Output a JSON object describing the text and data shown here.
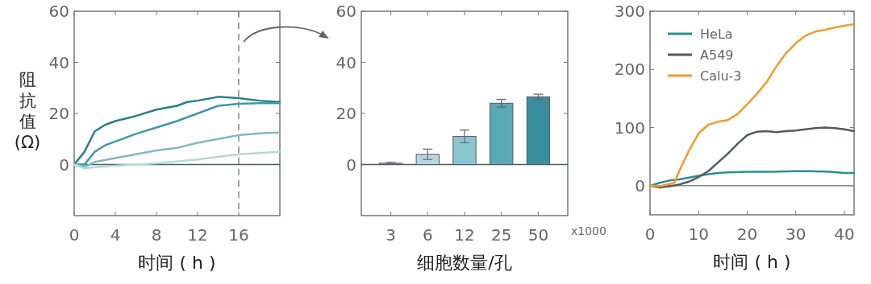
{
  "chart_data": [
    {
      "type": "line",
      "ylabel": "阻抗值 (Ω)",
      "xlabel": "时间 ( h )",
      "xlim": [
        0,
        20
      ],
      "xticks": [
        0,
        4,
        8,
        12,
        16
      ],
      "ylim": [
        -20,
        60
      ],
      "yticks": [
        0,
        20,
        40,
        60
      ],
      "series": [
        {
          "color": "#2a7f8a",
          "x": [
            0,
            1,
            2,
            3,
            4,
            6,
            8,
            10,
            11,
            12,
            14,
            16,
            18,
            20
          ],
          "values": [
            0,
            5,
            13,
            15.5,
            17,
            19,
            21.5,
            23,
            24.5,
            25,
            26.5,
            26,
            25,
            24.5
          ]
        },
        {
          "color": "#3c9aa5",
          "x": [
            0,
            1,
            2,
            3,
            4,
            6,
            8,
            10,
            12,
            14,
            16,
            18,
            20
          ],
          "values": [
            0,
            0,
            5,
            7.5,
            9,
            12,
            14.5,
            17,
            20,
            23,
            23.8,
            24,
            24
          ]
        },
        {
          "color": "#7fbcc0",
          "x": [
            0,
            1,
            2,
            4,
            6,
            8,
            10,
            12,
            14,
            16,
            18,
            20
          ],
          "values": [
            0,
            -1,
            1,
            2.5,
            4,
            5.5,
            6.5,
            8.5,
            10,
            11.5,
            12.2,
            12.5
          ]
        },
        {
          "color": "#b5d9db",
          "x": [
            0,
            1,
            2,
            4,
            8,
            12,
            16,
            18,
            20
          ],
          "values": [
            0,
            -1.5,
            -1,
            -0.5,
            0.5,
            2,
            4,
            4.5,
            5
          ]
        }
      ],
      "ref_lines": [
        {
          "axis": "x",
          "value": 16,
          "color": "#888888",
          "line_style": "dashed"
        },
        {
          "axis": "y",
          "value": 0,
          "color": "#4a5a5e",
          "line_style": "solid"
        }
      ],
      "grid": false,
      "legend": false
    },
    {
      "type": "bar",
      "xlabel": "细胞数量/孔",
      "categories": [
        "3",
        "6",
        "12",
        "25",
        "50"
      ],
      "values": [
        0.5,
        4,
        11,
        24,
        26.5
      ],
      "errors": [
        0.3,
        2,
        2.5,
        1.5,
        1
      ],
      "colors": [
        "#8aa3a7",
        "#b6d8dd",
        "#8cc4cf",
        "#5aa9b4",
        "#3a8e9c"
      ],
      "ylim": [
        -20,
        60
      ],
      "yticks": [
        0,
        20,
        40,
        60
      ],
      "annotations": [
        "x1000"
      ],
      "ref_lines": [
        {
          "axis": "y",
          "value": 0,
          "color": "#4a5a5e",
          "line_style": "solid"
        }
      ],
      "grid": false,
      "legend": false
    },
    {
      "type": "line",
      "xlabel": "时间 ( h )",
      "xlim": [
        0,
        42
      ],
      "xticks": [
        0,
        10,
        20,
        30,
        40
      ],
      "ylim": [
        -50,
        300
      ],
      "yticks": [
        0,
        100,
        200,
        300
      ],
      "series": [
        {
          "name": "HeLa",
          "color": "#2b8f94",
          "x": [
            0,
            2,
            4,
            6,
            8,
            10,
            12,
            14,
            16,
            20,
            25,
            30,
            33,
            37,
            40,
            42
          ],
          "values": [
            0,
            5,
            9,
            11,
            14,
            17,
            20,
            22,
            23,
            24,
            24,
            25,
            25,
            24,
            22,
            22
          ]
        },
        {
          "name": "A549",
          "color": "#555a5c",
          "x": [
            0,
            2,
            4,
            6,
            8,
            10,
            12,
            14,
            16,
            18,
            20,
            22,
            24,
            26,
            28,
            30,
            32,
            34,
            36,
            38,
            40,
            42
          ],
          "values": [
            0,
            -3,
            -1,
            2,
            7,
            15,
            25,
            40,
            55,
            72,
            87,
            93,
            94,
            92,
            94,
            95,
            97,
            99,
            100,
            99,
            97,
            94
          ]
        },
        {
          "name": "Calu-3",
          "color": "#f39a2a",
          "x": [
            0,
            2,
            4,
            5,
            6,
            8,
            10,
            12,
            14,
            16,
            18,
            20,
            22,
            24,
            26,
            28,
            30,
            32,
            34,
            36,
            38,
            40,
            42
          ],
          "values": [
            0,
            -1,
            3,
            5,
            25,
            60,
            90,
            105,
            110,
            113,
            123,
            140,
            158,
            178,
            205,
            228,
            245,
            258,
            265,
            268,
            272,
            275,
            278
          ]
        }
      ],
      "ref_lines": [
        {
          "axis": "y",
          "value": 0,
          "color": "#888888",
          "line_style": "solid"
        }
      ],
      "grid": false,
      "legend": "top left"
    }
  ]
}
